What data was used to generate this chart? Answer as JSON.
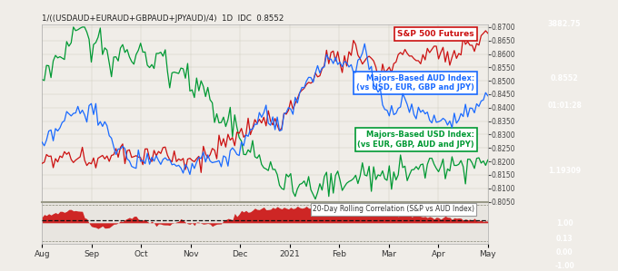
{
  "title": "1/((USDAUD+EURAUD+GBPAUD+JPYAUD)/4)  1D  IDC  0.8552",
  "bg_color": "#1e1e2e",
  "chart_bg": "#f0ede8",
  "main_bg": "#f0ede8",
  "corr_bg": "#e8e5e0",
  "x_labels": [
    "Aug",
    "Sep",
    "Oct",
    "Nov",
    "Dec",
    "2021",
    "Feb",
    "Mar",
    "Apr",
    "May"
  ],
  "aud_color": "#1a6aff",
  "sp500_color": "#cc1111",
  "usd_color": "#009933",
  "aud_label1": "Majors-Based AUD Index:",
  "aud_label2": "(vs USD, EUR, GBP and JPY)",
  "usd_label1": "Majors-Based USD Index:",
  "usd_label2": "(vs EUR, GBP, AUD and JPY)",
  "sp500_label": "S&P 500 Futures",
  "aud_value": "0.8552",
  "aud_time": "01:01:28",
  "usd_value": "1.19309",
  "sp500_value": "3882.75",
  "corr_label": "20-Day Rolling Correlation (S&P vs AUD Index)",
  "corr_value": "0.13",
  "ytick_right": [
    "0.8700",
    "0.8650",
    "0.8600",
    "0.8550",
    "0.8500",
    "0.8450",
    "0.8400",
    "0.8350",
    "0.8300",
    "0.8250",
    "0.8200",
    "0.8150",
    "0.8100",
    "0.8050"
  ],
  "main_ylim": [
    0.805,
    0.871
  ],
  "corr_ylim": [
    -1.15,
    1.15
  ]
}
